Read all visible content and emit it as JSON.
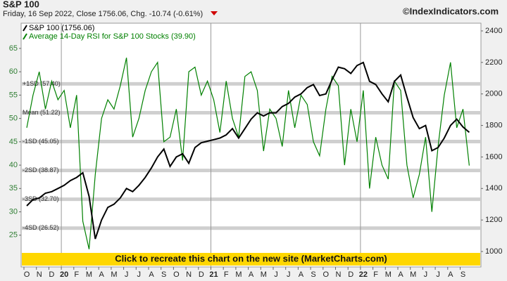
{
  "chart_data": {
    "type": "line",
    "title": "S&P 100",
    "subtitle": "Friday, 16 Sep 2022, Close 1756.06, Chg. -10.74 (-0.61%)",
    "watermark": "©IndexIndicators.com",
    "banner": "Click to recreate this chart on the new site (MarketCharts.com)",
    "categories": [
      "O",
      null,
      "N",
      null,
      "D",
      null,
      "20",
      null,
      "F",
      null,
      "M",
      null,
      "A",
      null,
      "M",
      null,
      "J",
      null,
      "J",
      null,
      "A",
      null,
      "S",
      null,
      "O",
      null,
      "N",
      null,
      "D",
      null,
      "21",
      null,
      "F",
      null,
      "M",
      null,
      "A",
      null,
      "M",
      null,
      "J",
      null,
      "J",
      null,
      "A",
      null,
      "S",
      null,
      "O",
      null,
      "N",
      null,
      "D",
      null,
      "22",
      null,
      "F",
      null,
      "M",
      null,
      "A",
      null,
      "M",
      null,
      "J",
      null,
      "J",
      null,
      "A",
      null,
      "S",
      null
    ],
    "series": [
      {
        "name": "S&P 100 (1756.06)",
        "color": "#000000",
        "axis": "y2",
        "values": [
          1290,
          1330,
          1340,
          1370,
          1380,
          1400,
          1420,
          1450,
          1470,
          1500,
          1350,
          1080,
          1200,
          1280,
          1300,
          1340,
          1400,
          1380,
          1420,
          1470,
          1530,
          1600,
          1650,
          1540,
          1600,
          1620,
          1560,
          1660,
          1690,
          1700,
          1710,
          1720,
          1740,
          1780,
          1720,
          1780,
          1840,
          1880,
          1860,
          1880,
          1880,
          1920,
          1940,
          1980,
          2000,
          2040,
          2060,
          1990,
          2000,
          2090,
          2170,
          2160,
          2130,
          2180,
          2200,
          2080,
          2060,
          2000,
          1950,
          2080,
          2120,
          1980,
          1850,
          1780,
          1800,
          1640,
          1660,
          1720,
          1800,
          1840,
          1790,
          1756.06
        ]
      },
      {
        "name": "Average 14-Day RSI for S&P 100 Stocks (39.90)",
        "color": "#008000",
        "values": [
          48,
          55,
          60,
          52,
          58,
          54,
          56,
          48,
          55,
          28,
          22,
          38,
          50,
          54,
          52,
          57,
          63,
          46,
          50,
          56,
          60,
          62,
          45,
          46,
          52,
          41,
          60,
          61,
          55,
          58,
          54,
          47,
          58,
          50,
          46,
          59,
          60,
          56,
          43,
          52,
          50,
          44,
          56,
          48,
          55,
          53,
          45,
          42,
          52,
          59,
          57,
          40,
          52,
          45,
          56,
          35,
          46,
          40,
          37,
          58,
          56,
          40,
          33,
          38,
          46,
          30,
          44,
          55,
          62,
          48,
          52,
          39.9
        ]
      }
    ],
    "ylim": [
      18.2,
      70.4
    ],
    "yticks": [
      25,
      30,
      35,
      40,
      45,
      50,
      55,
      60,
      65
    ],
    "y2lim": [
      902,
      2449
    ],
    "y2ticks": [
      1000,
      1200,
      1400,
      1600,
      1800,
      2000,
      2200,
      2400
    ],
    "bands": [
      {
        "label": "+1SD (57.40)",
        "value": 57.4
      },
      {
        "label": "Mean (51.22)",
        "value": 51.22
      },
      {
        "label": "-1SD (45.05)",
        "value": 45.05
      },
      {
        "label": "-2SD (38.87)",
        "value": 38.87
      },
      {
        "label": "-3SD (32.70)",
        "value": 32.7
      },
      {
        "label": "-4SD (26.52)",
        "value": 26.52
      }
    ]
  }
}
